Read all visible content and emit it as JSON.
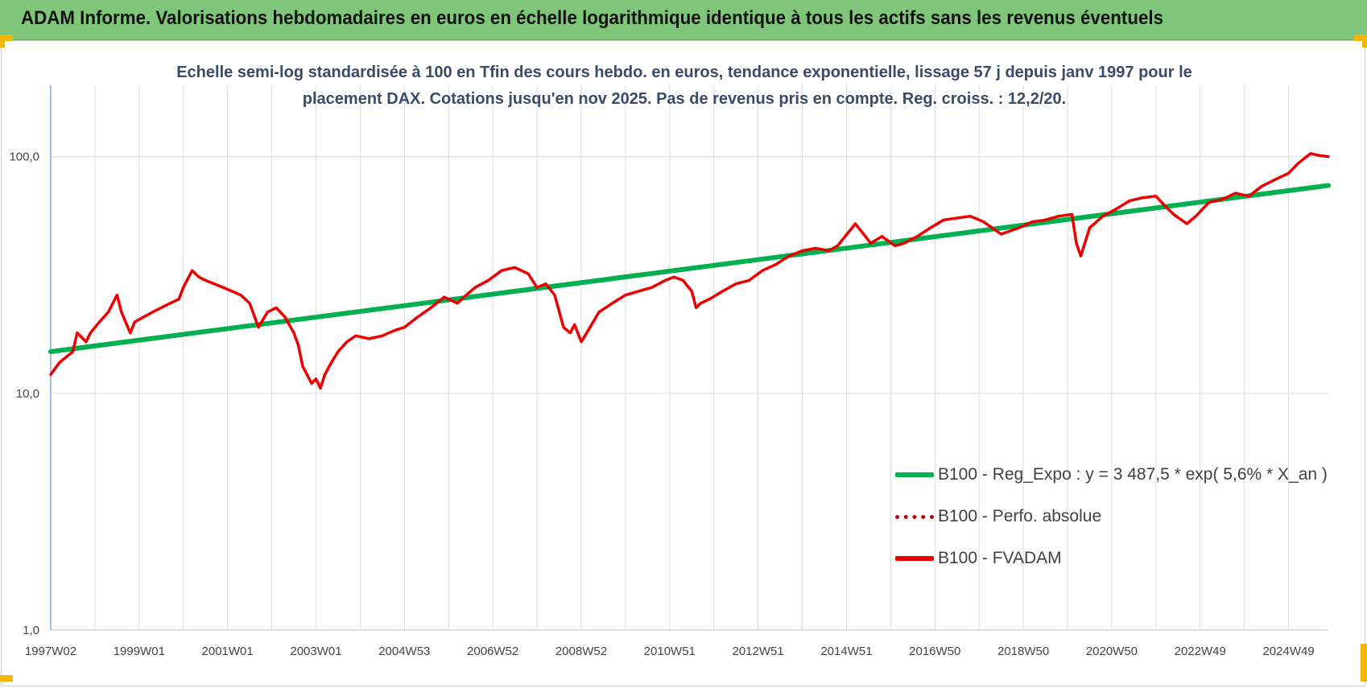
{
  "header": {
    "title": "ADAM Informe. Valorisations hebdomadaires en euros en échelle logarithmique identique à tous les actifs sans les revenus éventuels",
    "background": "#7fc67a"
  },
  "chart_data": {
    "type": "line",
    "title_lines": [
      "Echelle semi-log standardisée à 100 en Tfin des cours hebdo. en euros, tendance exponentielle, lissage 57 j depuis janv 1997 pour le",
      "placement DAX. Cotations jusqu'en nov 2025. Pas de revenus pris en compte. Reg. croiss. : 12,2/20."
    ],
    "y_scale": "log",
    "ylim": [
      1,
      200
    ],
    "y_ticks": [
      1,
      10,
      100
    ],
    "y_tick_labels": [
      "1,0",
      "10,0",
      "100,0"
    ],
    "x_range": [
      1997.0,
      2025.9
    ],
    "x_tick_labels": [
      "1997W02",
      "1999W01",
      "2001W01",
      "2003W01",
      "2004W53",
      "2006W52",
      "2008W52",
      "2010W51",
      "2012W51",
      "2014W51",
      "2016W50",
      "2018W50",
      "2020W50",
      "2022W49",
      "2024W49"
    ],
    "x_tick_years": [
      1997.0,
      1999.0,
      2001.0,
      2003.0,
      2005.0,
      2007.0,
      2009.0,
      2011.0,
      2013.0,
      2015.0,
      2017.0,
      2019.0,
      2021.0,
      2023.0,
      2025.0
    ],
    "grid": true,
    "legend_position": "bottom-right",
    "series": [
      {
        "name": "B100 - Reg_Expo : y = 3 487,5 * exp( 5,6% *  X_an )",
        "color": "#00b050",
        "style": "solid",
        "x": [
          1997.0,
          2025.9
        ],
        "values": [
          15.0,
          75.5
        ]
      },
      {
        "name": "B100 - Perfo. absolue",
        "color": "#c00000",
        "style": "dotted",
        "x": [],
        "values": []
      },
      {
        "name": "B100 - FVADAM",
        "color": "#ee0000",
        "style": "solid",
        "x": [
          1997.0,
          1997.2,
          1997.5,
          1997.6,
          1997.8,
          1997.9,
          1998.1,
          1998.3,
          1998.5,
          1998.6,
          1998.8,
          1998.9,
          1999.1,
          1999.3,
          1999.5,
          1999.7,
          1999.9,
          2000.0,
          2000.2,
          2000.35,
          2000.5,
          2000.7,
          2000.9,
          2001.1,
          2001.3,
          2001.5,
          2001.7,
          2001.9,
          2002.1,
          2002.3,
          2002.5,
          2002.6,
          2002.7,
          2002.8,
          2002.9,
          2003.0,
          2003.1,
          2003.2,
          2003.35,
          2003.5,
          2003.7,
          2003.9,
          2004.2,
          2004.5,
          2004.8,
          2005.0,
          2005.3,
          2005.6,
          2005.9,
          2006.2,
          2006.4,
          2006.6,
          2006.9,
          2007.2,
          2007.5,
          2007.8,
          2008.0,
          2008.2,
          2008.4,
          2008.6,
          2008.75,
          2008.85,
          2009.0,
          2009.2,
          2009.4,
          2009.7,
          2010.0,
          2010.3,
          2010.6,
          2010.9,
          2011.1,
          2011.3,
          2011.5,
          2011.6,
          2011.7,
          2011.9,
          2012.2,
          2012.5,
          2012.8,
          2013.1,
          2013.4,
          2013.7,
          2014.0,
          2014.3,
          2014.6,
          2014.8,
          2015.2,
          2015.35,
          2015.55,
          2015.8,
          2016.1,
          2016.3,
          2016.6,
          2016.9,
          2017.2,
          2017.5,
          2017.8,
          2018.1,
          2018.5,
          2018.9,
          2019.2,
          2019.5,
          2019.8,
          2020.1,
          2020.2,
          2020.3,
          2020.5,
          2020.8,
          2021.1,
          2021.4,
          2021.7,
          2022.0,
          2022.2,
          2022.4,
          2022.7,
          2022.9,
          2023.2,
          2023.5,
          2023.8,
          2024.1,
          2024.4,
          2024.7,
          2025.0,
          2025.2,
          2025.35,
          2025.5,
          2025.7,
          2025.9
        ],
        "values": [
          12.0,
          13.5,
          15.0,
          18.0,
          16.5,
          18.0,
          20.0,
          22.0,
          26.0,
          22.0,
          18.0,
          20.0,
          21.0,
          22.0,
          23.0,
          24.0,
          25.0,
          28.0,
          33.0,
          31.0,
          30.0,
          29.0,
          28.0,
          27.0,
          26.0,
          24.0,
          19.0,
          22.0,
          23.0,
          21.0,
          18.0,
          16.0,
          13.0,
          12.0,
          11.0,
          11.5,
          10.5,
          12.0,
          13.5,
          15.0,
          16.5,
          17.5,
          17.0,
          17.5,
          18.5,
          19.0,
          21.0,
          23.0,
          25.5,
          24.0,
          26.0,
          28.0,
          30.0,
          33.0,
          34.0,
          32.0,
          28.0,
          29.0,
          26.0,
          19.0,
          18.0,
          19.5,
          16.5,
          19.0,
          22.0,
          24.0,
          26.0,
          27.0,
          28.0,
          30.0,
          31.0,
          30.0,
          27.0,
          23.0,
          24.0,
          25.0,
          27.0,
          29.0,
          30.0,
          33.0,
          35.0,
          38.0,
          40.0,
          41.0,
          40.0,
          42.0,
          52.0,
          48.0,
          43.0,
          46.0,
          42.0,
          43.0,
          46.0,
          50.0,
          54.0,
          55.0,
          56.0,
          53.0,
          47.0,
          50.0,
          53.0,
          54.0,
          56.0,
          57.0,
          43.0,
          38.0,
          50.0,
          56.0,
          60.0,
          65.0,
          67.0,
          68.0,
          62.0,
          57.0,
          52.0,
          56.0,
          64.0,
          66.0,
          70.0,
          68.0,
          75.0,
          80.0,
          85.0,
          93.0,
          98.0,
          103.0,
          101.0,
          100.0
        ]
      }
    ]
  }
}
